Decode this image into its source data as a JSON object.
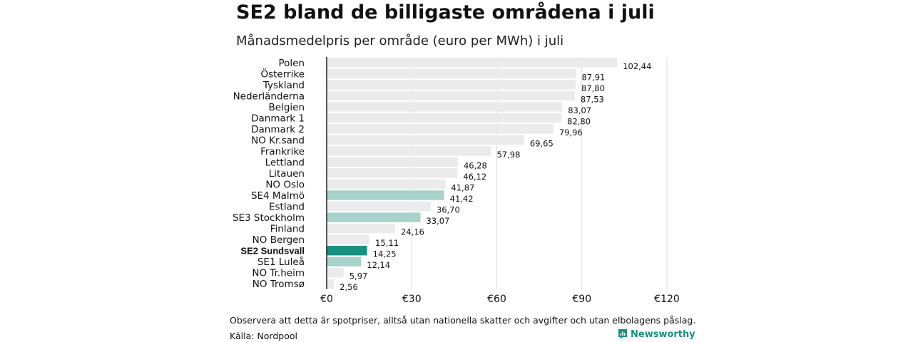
{
  "header": {
    "title": "SE2 bland de billigaste områdena i juli",
    "subtitle": "Månadsmedelpris per område (euro per MWh) i juli"
  },
  "footer": {
    "note": "Observera att detta är spotpriser, alltså utan nationella skatter och avgifter och utan elbolagens påslag.",
    "source": "Källa: Nordpool",
    "brand": "Newsworthy"
  },
  "colors": {
    "default_bar": "#ebebeb",
    "swedish_bar": "#a7d3cb",
    "highlight_bar": "#1a9080",
    "brand": "#1a9080"
  },
  "chart_data": {
    "type": "bar",
    "orientation": "horizontal",
    "xlim": [
      0,
      120
    ],
    "x_ticks": [
      0,
      30,
      60,
      90,
      120
    ],
    "x_tick_labels": [
      "€0",
      "€30",
      "€60",
      "€90",
      "€120"
    ],
    "grid": true,
    "categories": [
      "Polen",
      "Österrike",
      "Tyskland",
      "Nederländerna",
      "Belgien",
      "Danmark 1",
      "Danmark 2",
      "NO Kr.sand",
      "Frankrike",
      "Lettland",
      "Litauen",
      "NO Oslo",
      "SE4 Malmö",
      "Estland",
      "SE3 Stockholm",
      "Finland",
      "NO Bergen",
      "SE2 Sundsvall",
      "SE1 Luleå",
      "NO Tr.heim",
      "NO Tromsø"
    ],
    "values": [
      102.44,
      87.91,
      87.8,
      87.53,
      83.07,
      82.8,
      79.96,
      69.65,
      57.98,
      46.28,
      46.12,
      41.87,
      41.42,
      36.7,
      33.07,
      24.16,
      15.11,
      14.25,
      12.14,
      5.97,
      2.56
    ],
    "value_labels": [
      "102,44",
      "87,91",
      "87,80",
      "87,53",
      "83,07",
      "82,80",
      "79,96",
      "69,65",
      "57,98",
      "46,28",
      "46,12",
      "41,87",
      "41,42",
      "36,70",
      "33,07",
      "24,16",
      "15,11",
      "14,25",
      "12,14",
      "5,97",
      "2,56"
    ],
    "category_labels": [
      "Polen",
      "Österrike",
      "Tyskland",
      "Nederländerna",
      "Belgien",
      "Danmark  1",
      "Danmark  2",
      "NO Kr.sand",
      "Frankrike",
      "Lettland",
      "Litauen",
      "NO Oslo",
      "SE4  Malmö",
      "Estland",
      "SE3  Stockholm",
      "Finland",
      "NO Bergen",
      "SE2 Sundsvall",
      "SE1  Luleå",
      "NO Tr.heim",
      "NO Tromsø"
    ],
    "group": [
      "other",
      "other",
      "other",
      "other",
      "other",
      "other",
      "other",
      "other",
      "other",
      "other",
      "other",
      "other",
      "swedish",
      "other",
      "swedish",
      "other",
      "other",
      "highlight",
      "swedish",
      "other",
      "other"
    ]
  }
}
